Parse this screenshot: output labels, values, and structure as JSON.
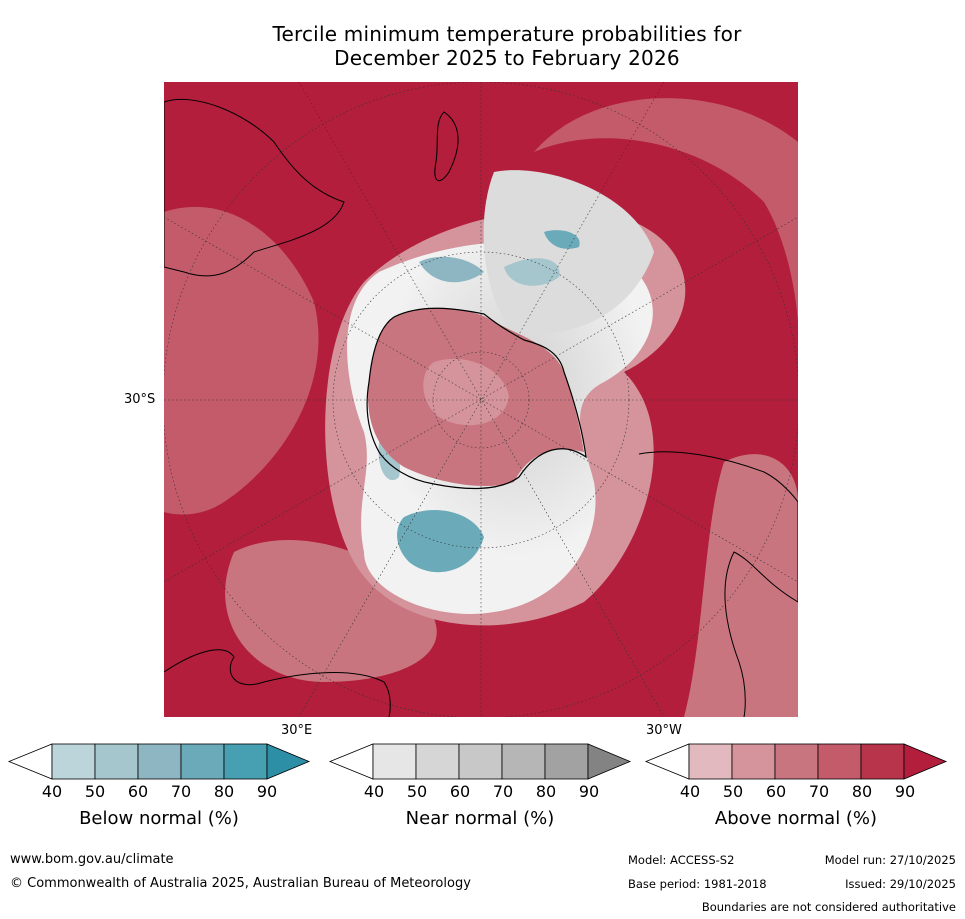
{
  "title": {
    "line1": "Tercile minimum temperature probabilities for",
    "line2": "December 2025 to February 2026"
  },
  "map": {
    "projection": "south-polar",
    "lat_label": "30°S",
    "lon_labels": [
      "30°E",
      "30°W"
    ]
  },
  "colorbars": [
    {
      "title": "Below normal (%)",
      "ticks": [
        "40",
        "50",
        "60",
        "70",
        "80",
        "90"
      ],
      "colors": [
        "#ffffff",
        "#bcd5da",
        "#a6c6cd",
        "#8db6c2",
        "#6aaab9",
        "#47a0b2",
        "#2d8fa5"
      ]
    },
    {
      "title": "Near normal (%)",
      "ticks": [
        "40",
        "50",
        "60",
        "70",
        "80",
        "90"
      ],
      "colors": [
        "#ffffff",
        "#e6e6e6",
        "#d6d6d6",
        "#c8c8c8",
        "#b6b6b6",
        "#a2a2a2",
        "#838383"
      ]
    },
    {
      "title": "Above normal (%)",
      "ticks": [
        "40",
        "50",
        "60",
        "70",
        "80",
        "90"
      ],
      "colors": [
        "#ffffff",
        "#e2b9be",
        "#d5949c",
        "#c9757f",
        "#c45b6a",
        "#b8344a",
        "#b21e3c"
      ]
    }
  ],
  "footer": {
    "website": "www.bom.gov.au/climate",
    "copyright": "© Commonwealth of Australia 2025, Australian Bureau of Meteorology",
    "model": "Model: ACCESS-S2",
    "base_period": "Base period: 1981-2018",
    "model_run": "Model run: 27/10/2025",
    "issued": "Issued: 29/10/2025",
    "boundaries_note": "Boundaries are not considered authoritative"
  }
}
